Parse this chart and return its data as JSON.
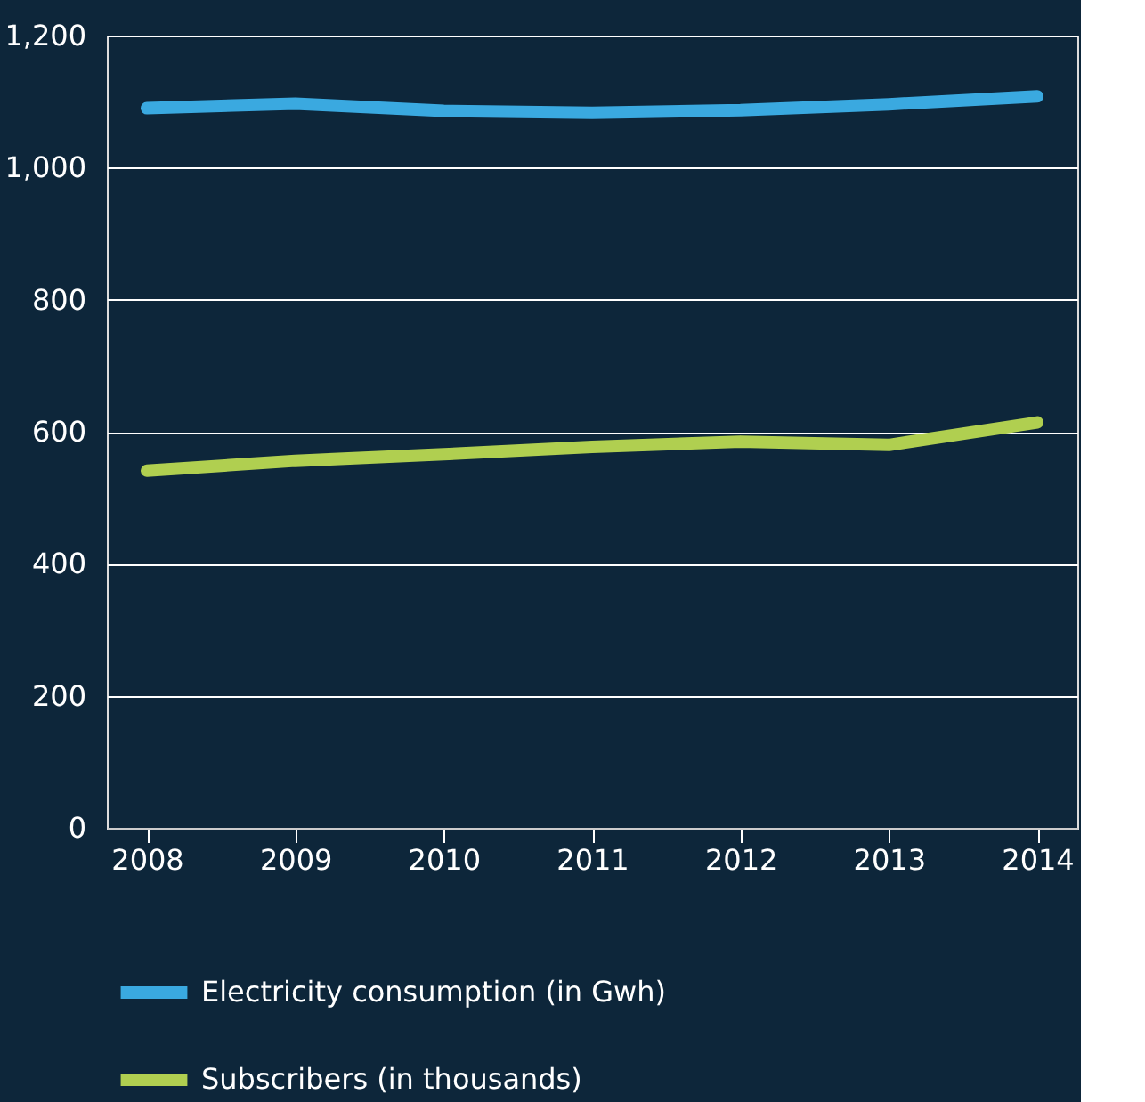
{
  "chart_data": {
    "type": "line",
    "categories": [
      "2008",
      "2009",
      "2010",
      "2011",
      "2012",
      "2013",
      "2014"
    ],
    "series": [
      {
        "name": "Electricity consumption (in Gwh)",
        "color": "#3aa9e0",
        "values": [
          1090,
          1097,
          1086,
          1083,
          1087,
          1096,
          1108
        ]
      },
      {
        "name": "Subscribers (in thousands)",
        "color": "#b0cf50",
        "values": [
          541,
          556,
          566,
          577,
          585,
          580,
          614
        ]
      }
    ],
    "ylim": [
      0,
      1200
    ],
    "yticks": [
      0,
      200,
      400,
      600,
      800,
      {
        "value": 1000,
        "label": "1,000"
      },
      {
        "value": 1200,
        "label": "1,200"
      }
    ],
    "grid": "y",
    "legend": "bottom",
    "line_style": "solid"
  }
}
